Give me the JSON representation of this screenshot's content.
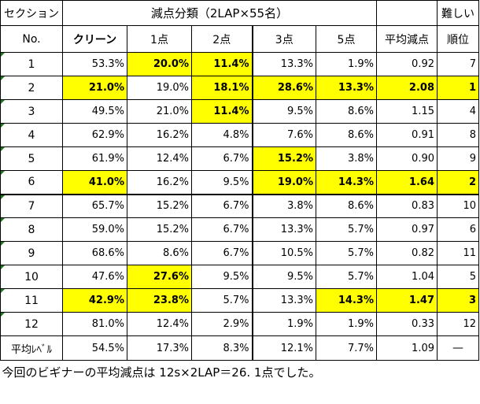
{
  "header": {
    "section_label": "セクション",
    "group_label": "減点分類（2LAP×55名）",
    "difficulty_label": "難しい",
    "no_label": "No.",
    "columns": [
      "クリーン",
      "1点",
      "2点",
      "3点",
      "5点",
      "平均減点",
      "順位"
    ]
  },
  "rows": [
    {
      "section": "1",
      "clean": "53.3%",
      "p1": "20.0%",
      "p2": "11.4%",
      "p3": "13.3%",
      "p5": "1.9%",
      "avg": "0.92",
      "rank": "7"
    },
    {
      "section": "2",
      "clean": "21.0%",
      "p1": "19.0%",
      "p2": "18.1%",
      "p3": "28.6%",
      "p5": "13.3%",
      "avg": "2.08",
      "rank": "1"
    },
    {
      "section": "3",
      "clean": "49.5%",
      "p1": "21.0%",
      "p2": "11.4%",
      "p3": "9.5%",
      "p5": "8.6%",
      "avg": "1.15",
      "rank": "4"
    },
    {
      "section": "4",
      "clean": "62.9%",
      "p1": "16.2%",
      "p2": "4.8%",
      "p3": "7.6%",
      "p5": "8.6%",
      "avg": "0.91",
      "rank": "8"
    },
    {
      "section": "5",
      "clean": "61.9%",
      "p1": "12.4%",
      "p2": "6.7%",
      "p3": "15.2%",
      "p5": "3.8%",
      "avg": "0.90",
      "rank": "9"
    },
    {
      "section": "6",
      "clean": "41.0%",
      "p1": "16.2%",
      "p2": "9.5%",
      "p3": "19.0%",
      "p5": "14.3%",
      "avg": "1.64",
      "rank": "2"
    },
    {
      "section": "7",
      "clean": "65.7%",
      "p1": "15.2%",
      "p2": "6.7%",
      "p3": "3.8%",
      "p5": "8.6%",
      "avg": "0.83",
      "rank": "10"
    },
    {
      "section": "8",
      "clean": "59.0%",
      "p1": "15.2%",
      "p2": "6.7%",
      "p3": "13.3%",
      "p5": "5.7%",
      "avg": "0.97",
      "rank": "6"
    },
    {
      "section": "9",
      "clean": "68.6%",
      "p1": "8.6%",
      "p2": "6.7%",
      "p3": "10.5%",
      "p5": "5.7%",
      "avg": "0.82",
      "rank": "11"
    },
    {
      "section": "10",
      "clean": "47.6%",
      "p1": "27.6%",
      "p2": "9.5%",
      "p3": "9.5%",
      "p5": "5.7%",
      "avg": "1.04",
      "rank": "5"
    },
    {
      "section": "11",
      "clean": "42.9%",
      "p1": "23.8%",
      "p2": "5.7%",
      "p3": "13.3%",
      "p5": "14.3%",
      "avg": "1.47",
      "rank": "3"
    },
    {
      "section": "12",
      "clean": "81.0%",
      "p1": "12.4%",
      "p2": "2.9%",
      "p3": "1.9%",
      "p5": "1.9%",
      "avg": "0.33",
      "rank": "12"
    }
  ],
  "average_row": {
    "label": "平均ﾚﾍﾞﾙ",
    "clean": "54.5%",
    "p1": "17.3%",
    "p2": "8.3%",
    "p3": "12.1%",
    "p5": "7.7%",
    "avg": "1.09",
    "rank": "—"
  },
  "footer": "今回のビギナーの平均減点は 12s×2LAP＝26. 1点でした。",
  "colors": {
    "highlight": "#ffff00",
    "row_marker": "#1a7a1a"
  }
}
